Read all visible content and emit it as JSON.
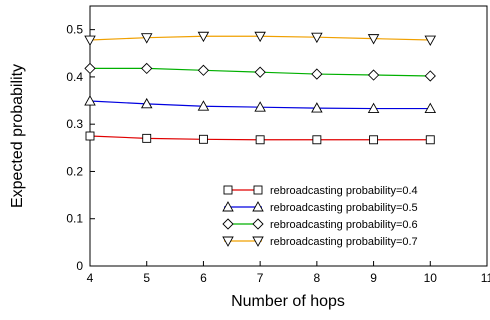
{
  "chart_data": {
    "type": "line",
    "title": "",
    "xlabel": "Number of hops",
    "ylabel": "Expected probability",
    "x": [
      4,
      5,
      6,
      7,
      8,
      9,
      10
    ],
    "xlim": [
      4,
      11
    ],
    "ylim": [
      0,
      0.55
    ],
    "xticks": [
      4,
      5,
      6,
      7,
      8,
      9,
      10,
      11
    ],
    "xtick_labels": [
      "4",
      "5",
      "6",
      "7",
      "8",
      "9",
      "10",
      "11"
    ],
    "yticks": [
      0,
      0.1,
      0.2,
      0.3,
      0.4,
      0.5
    ],
    "ytick_labels": [
      "0",
      "0.1",
      "0.2",
      "0.3",
      "0.4",
      "0.5"
    ],
    "grid": false,
    "legend_position": "bottom-right",
    "series": [
      {
        "name": "rebroadcasting probability=0.4",
        "color": "#e00000",
        "marker": "square",
        "values": [
          0.275,
          0.27,
          0.268,
          0.267,
          0.267,
          0.267,
          0.267
        ]
      },
      {
        "name": "rebroadcasting probability=0.5",
        "color": "#0000e0",
        "marker": "triangle-up",
        "values": [
          0.349,
          0.343,
          0.338,
          0.336,
          0.334,
          0.333,
          0.333
        ]
      },
      {
        "name": "rebroadcasting probability=0.6",
        "color": "#00b000",
        "marker": "diamond",
        "values": [
          0.418,
          0.418,
          0.414,
          0.41,
          0.406,
          0.404,
          0.402
        ]
      },
      {
        "name": "rebroadcasting probability=0.7",
        "color": "#f0a000",
        "marker": "triangle-down",
        "values": [
          0.478,
          0.483,
          0.486,
          0.486,
          0.484,
          0.481,
          0.478
        ]
      }
    ]
  }
}
